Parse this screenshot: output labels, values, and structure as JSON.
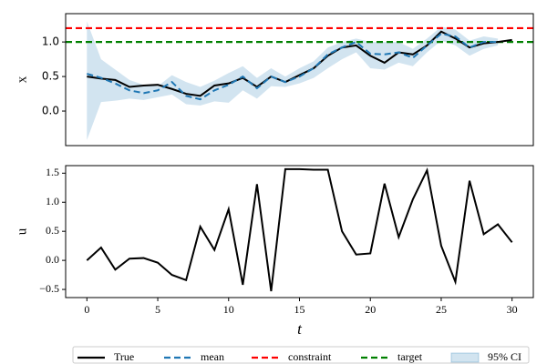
{
  "chart_data": [
    {
      "type": "line",
      "ylabel": "x",
      "x": [
        0,
        1,
        2,
        3,
        4,
        5,
        6,
        7,
        8,
        9,
        10,
        11,
        12,
        13,
        14,
        15,
        16,
        17,
        18,
        19,
        20,
        21,
        22,
        23,
        24,
        25,
        26,
        27,
        28,
        29,
        30
      ],
      "xlim": [
        -1.5,
        31.5
      ],
      "ylim": [
        -0.5,
        1.41
      ],
      "yticks": [
        {
          "value": 0,
          "label": "0.0"
        },
        {
          "value": 0.5,
          "label": "0.5"
        },
        {
          "value": 1,
          "label": "1.0"
        }
      ],
      "series": [
        {
          "name": "True",
          "color": "#000000",
          "dash": "solid",
          "values": [
            0.5,
            0.47,
            0.45,
            0.35,
            0.37,
            0.38,
            0.32,
            0.25,
            0.22,
            0.37,
            0.4,
            0.48,
            0.35,
            0.5,
            0.42,
            0.52,
            0.62,
            0.8,
            0.92,
            0.95,
            0.8,
            0.7,
            0.85,
            0.82,
            0.95,
            1.15,
            1.05,
            0.92,
            0.98,
            1.0,
            1.03
          ]
        },
        {
          "name": "mean",
          "color": "#1f77b4",
          "dash": "dashed",
          "values": [
            0.54,
            0.48,
            0.4,
            0.3,
            0.26,
            0.3,
            0.42,
            0.22,
            0.17,
            0.3,
            0.38,
            0.5,
            0.33,
            0.5,
            0.42,
            0.5,
            0.62,
            0.82,
            0.92,
            1.0,
            0.83,
            0.82,
            0.85,
            0.77,
            0.95,
            1.12,
            1.08,
            0.92,
            1.0,
            1.0,
            null
          ]
        }
      ],
      "hlines": [
        {
          "name": "constraint",
          "value": 1.2,
          "color": "#ff0000"
        },
        {
          "name": "target",
          "value": 1.0,
          "color": "#008000"
        }
      ],
      "band": {
        "name": "95% CI",
        "color": "#1f77b4",
        "lower": [
          -0.42,
          0.13,
          0.15,
          0.18,
          0.16,
          0.2,
          0.24,
          0.1,
          0.08,
          0.14,
          0.12,
          0.3,
          0.18,
          0.36,
          0.35,
          0.4,
          0.48,
          0.62,
          0.75,
          0.85,
          0.62,
          0.6,
          0.7,
          0.65,
          0.85,
          1.02,
          0.95,
          0.8,
          0.9,
          0.95,
          null
        ],
        "upper": [
          1.3,
          0.75,
          0.6,
          0.45,
          0.38,
          0.36,
          0.52,
          0.42,
          0.35,
          0.44,
          0.55,
          0.65,
          0.48,
          0.62,
          0.5,
          0.62,
          0.72,
          0.92,
          1.0,
          1.05,
          1.0,
          1.0,
          1.0,
          0.9,
          1.05,
          1.22,
          1.18,
          1.02,
          1.08,
          1.05,
          null
        ]
      },
      "legend": "below"
    },
    {
      "type": "line",
      "ylabel": "u",
      "xlabel": "t",
      "x": [
        0,
        1,
        2,
        3,
        4,
        5,
        6,
        7,
        8,
        9,
        10,
        11,
        12,
        13,
        14,
        15,
        16,
        17,
        18,
        19,
        20,
        21,
        22,
        23,
        24,
        25,
        26,
        27,
        28,
        29,
        30
      ],
      "xlim": [
        -1.5,
        31.5
      ],
      "ylim": [
        -0.64,
        1.63
      ],
      "xticks": [
        0,
        5,
        10,
        15,
        20,
        25,
        30
      ],
      "yticks": [
        {
          "value": -0.5,
          "label": "−0.5"
        },
        {
          "value": 0,
          "label": "0.0"
        },
        {
          "value": 0.5,
          "label": "0.5"
        },
        {
          "value": 1,
          "label": "1.0"
        },
        {
          "value": 1.5,
          "label": "1.5"
        }
      ],
      "series": [
        {
          "name": "u",
          "color": "#000000",
          "dash": "solid",
          "values": [
            0.0,
            0.22,
            -0.16,
            0.03,
            0.04,
            -0.04,
            -0.25,
            -0.34,
            0.58,
            0.18,
            0.88,
            -0.42,
            1.31,
            -0.53,
            1.57,
            1.57,
            1.56,
            1.56,
            0.5,
            0.1,
            0.12,
            1.32,
            0.4,
            1.05,
            1.55,
            0.25,
            -0.37,
            1.37,
            0.45,
            0.62,
            0.31
          ]
        }
      ]
    }
  ]
}
